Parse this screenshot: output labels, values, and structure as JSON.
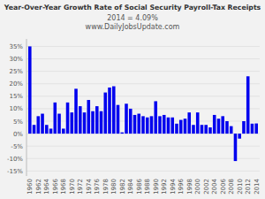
{
  "chart_data": {
    "type": "bar",
    "title": "Year-Over-Year Growth Rate of Social Security Payroll-Tax Receipts",
    "subtitle": [
      "2014 = 4.09%",
      "www.DailyJobsUpdate.com"
    ],
    "x": [
      1960,
      1961,
      1962,
      1963,
      1964,
      1965,
      1966,
      1967,
      1968,
      1969,
      1970,
      1971,
      1972,
      1973,
      1974,
      1975,
      1976,
      1977,
      1978,
      1979,
      1980,
      1981,
      1982,
      1983,
      1984,
      1985,
      1986,
      1987,
      1988,
      1989,
      1990,
      1991,
      1992,
      1993,
      1994,
      1995,
      1996,
      1997,
      1998,
      1999,
      2000,
      2001,
      2002,
      2003,
      2004,
      2005,
      2006,
      2007,
      2008,
      2009,
      2010,
      2011,
      2012,
      2013,
      2014
    ],
    "values": [
      35.0,
      3.5,
      7.0,
      8.0,
      3.5,
      2.0,
      12.5,
      8.0,
      2.0,
      12.5,
      8.5,
      18.0,
      11.0,
      8.5,
      13.5,
      9.0,
      11.0,
      9.0,
      16.5,
      18.5,
      19.0,
      11.5,
      0.5,
      12.0,
      10.0,
      7.5,
      8.0,
      7.0,
      6.5,
      7.0,
      13.0,
      7.0,
      7.5,
      6.5,
      6.5,
      4.0,
      5.5,
      6.0,
      8.5,
      3.5,
      8.5,
      3.5,
      3.5,
      2.5,
      7.5,
      6.0,
      7.0,
      5.0,
      3.0,
      -11.0,
      -2.0,
      5.0,
      23.0,
      4.0,
      4.09
    ],
    "color": "#0000ee",
    "xlim": [
      1959.2,
      2014.8
    ],
    "xticks": [
      1960,
      1962,
      1964,
      1966,
      1968,
      1970,
      1972,
      1974,
      1976,
      1978,
      1980,
      1982,
      1984,
      1986,
      1988,
      1990,
      1992,
      1994,
      1996,
      1998,
      2000,
      2002,
      2004,
      2006,
      2008,
      2010,
      2012,
      2014
    ],
    "ylim": [
      -17,
      38
    ],
    "yticks": [
      {
        "value": -15,
        "label": "-15%"
      },
      {
        "value": -10,
        "label": "-10%"
      },
      {
        "value": -5,
        "label": "-5%"
      },
      {
        "value": 0,
        "label": "0%"
      },
      {
        "value": 5,
        "label": "5%"
      },
      {
        "value": 10,
        "label": "10%"
      },
      {
        "value": 15,
        "label": "15%"
      },
      {
        "value": 20,
        "label": "20%"
      },
      {
        "value": 25,
        "label": "25%"
      },
      {
        "value": 30,
        "label": "30%"
      },
      {
        "value": 35,
        "label": "35%"
      }
    ],
    "grid": true
  }
}
